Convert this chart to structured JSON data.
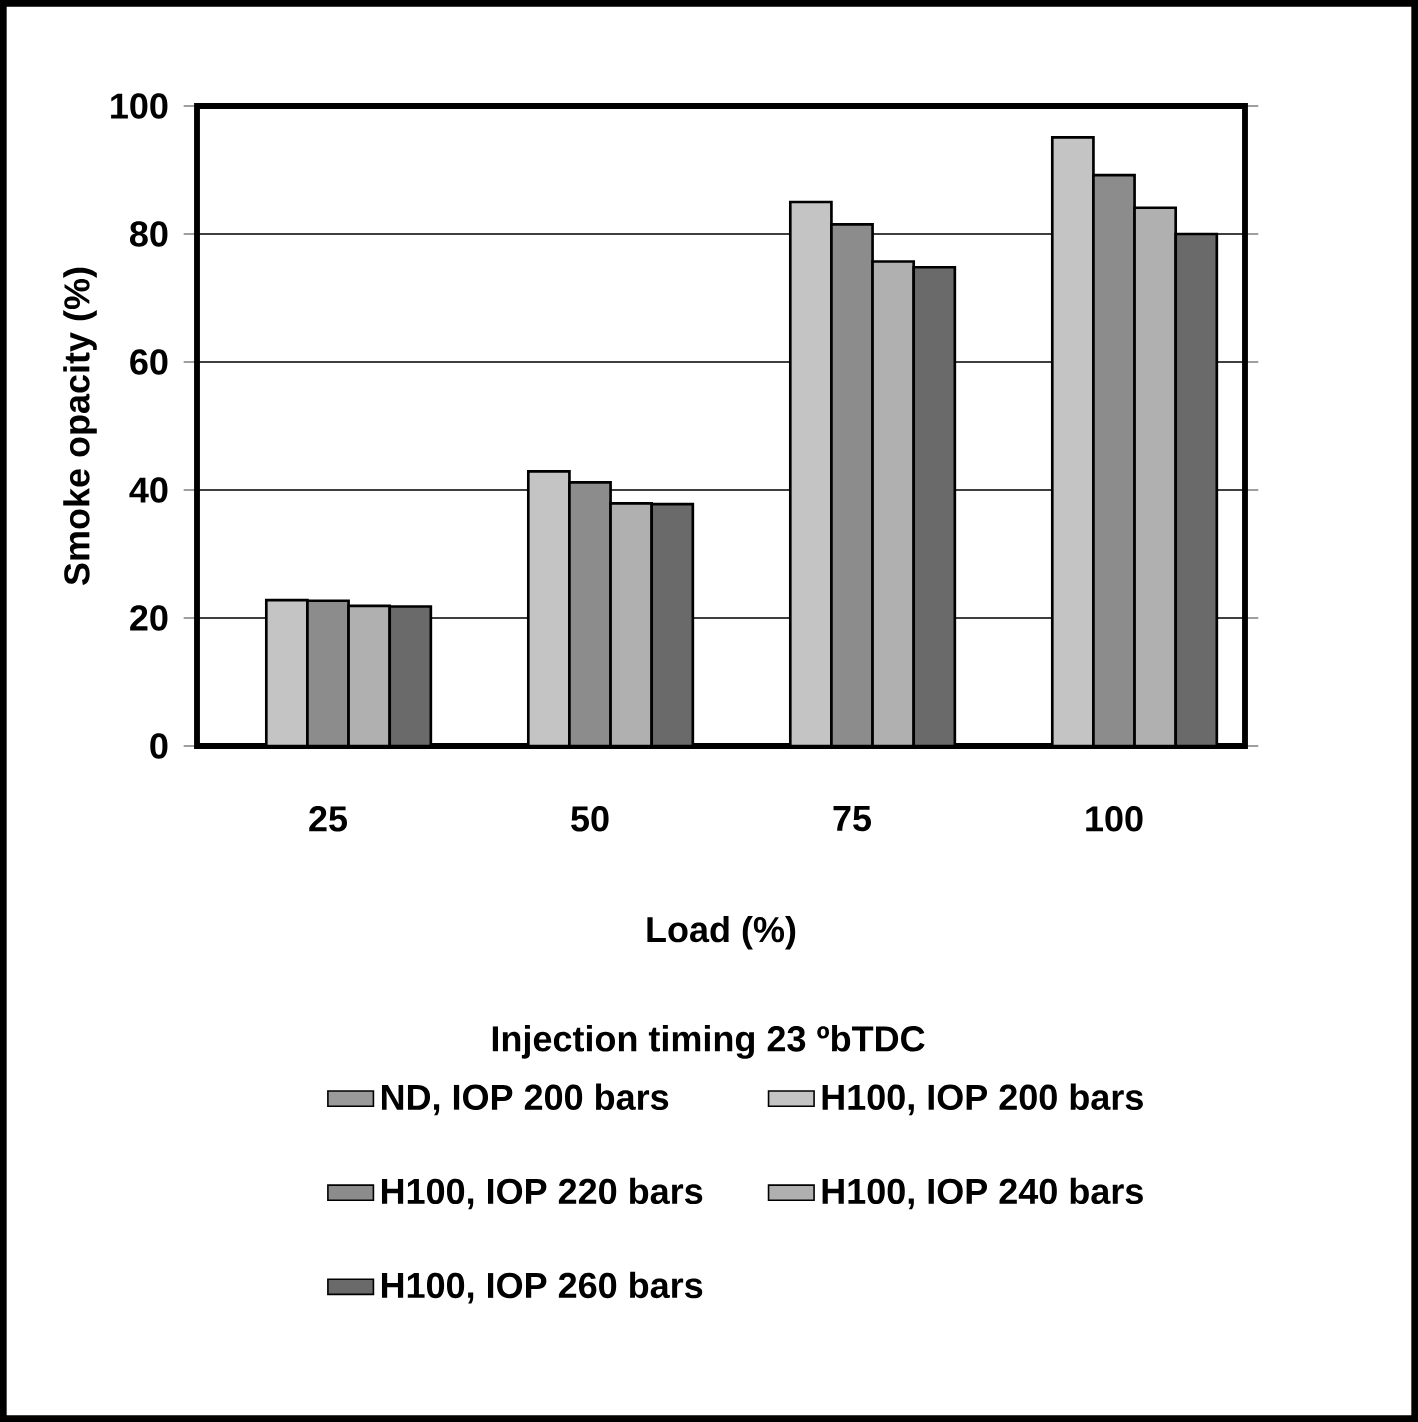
{
  "chart_data": {
    "type": "bar",
    "xlabel": "Load (%)",
    "ylabel": "Smoke opacity (%)",
    "legend_title": "Injection timing 23 ºbTDC",
    "categories": [
      "25",
      "50",
      "75",
      "100"
    ],
    "series": [
      {
        "name": "ND, IOP 200 bars",
        "color": "#9a9a9a",
        "values": [
          null,
          null,
          null,
          null
        ]
      },
      {
        "name": "H100, IOP 200 bars",
        "color": "#c4c4c4",
        "values": [
          22.8,
          42.9,
          85.0,
          95.1
        ]
      },
      {
        "name": "H100, IOP 220 bars",
        "color": "#8c8c8c",
        "values": [
          22.7,
          41.2,
          81.5,
          89.2
        ]
      },
      {
        "name": "H100, IOP 240 bars",
        "color": "#b0b0b0",
        "values": [
          21.9,
          37.9,
          75.7,
          84.1
        ]
      },
      {
        "name": "H100, IOP 260 bars",
        "color": "#6a6a6a",
        "values": [
          21.8,
          37.8,
          74.8,
          80.0
        ]
      }
    ],
    "ylim": [
      0,
      100
    ],
    "yticks": [
      0,
      20,
      40,
      60,
      80,
      100
    ],
    "grid": "y",
    "legend": "bottom"
  }
}
